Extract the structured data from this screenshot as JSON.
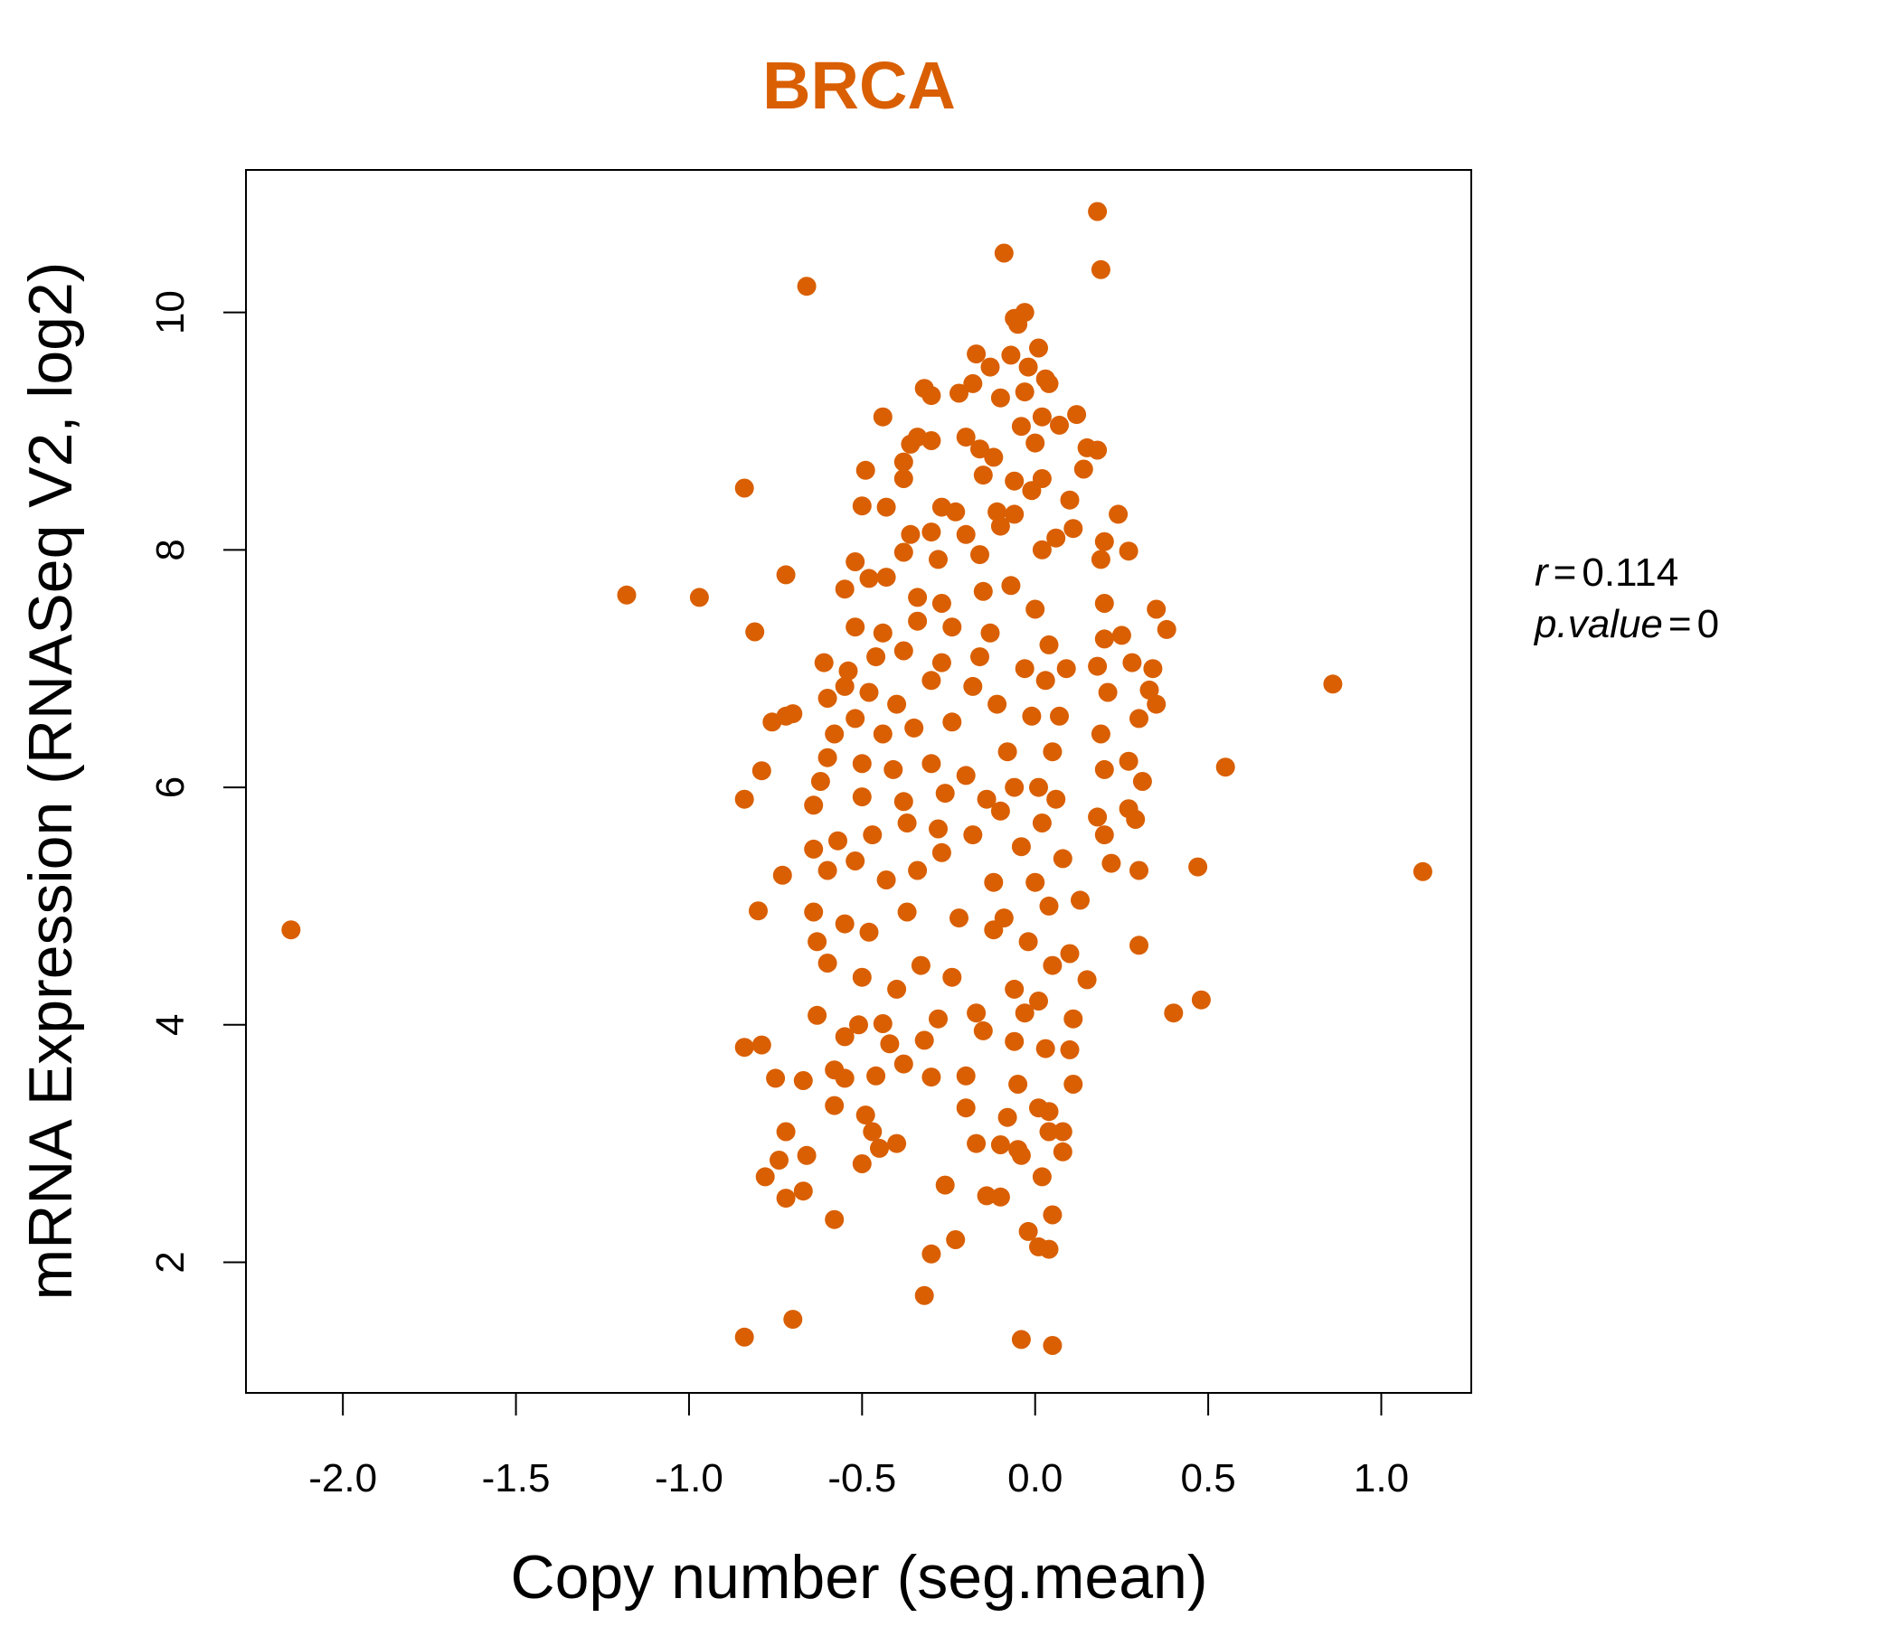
{
  "chart_data": {
    "type": "scatter",
    "title": "BRCA",
    "xlabel": "Copy number (seg.mean)",
    "ylabel": "mRNA Expression (RNASeq V2, log2)",
    "xlim": [
      -2.28,
      1.26
    ],
    "ylim": [
      0.9,
      11.2
    ],
    "x_ticks": [
      -2.0,
      -1.5,
      -1.0,
      -0.5,
      0.0,
      0.5,
      1.0
    ],
    "x_tick_labels": [
      "-2.0",
      "-1.5",
      "-1.0",
      "-0.5",
      "0.0",
      "0.5",
      "1.0"
    ],
    "y_ticks": [
      2,
      4,
      6,
      8,
      10
    ],
    "y_tick_labels": [
      "2",
      "4",
      "6",
      "8",
      "10"
    ],
    "grid": false,
    "point_color": "#d95f02",
    "stats": {
      "r_label": "r",
      "r_value": "0.114",
      "p_label": "p.value",
      "p_value": "0"
    },
    "points": [
      {
        "x": -2.15,
        "y": 4.8
      },
      {
        "x": -1.18,
        "y": 7.62
      },
      {
        "x": -0.97,
        "y": 7.6
      },
      {
        "x": 1.12,
        "y": 5.29
      },
      {
        "x": 0.86,
        "y": 6.87
      },
      {
        "x": 0.55,
        "y": 6.17
      },
      {
        "x": 0.47,
        "y": 5.33
      },
      {
        "x": 0.48,
        "y": 4.21
      },
      {
        "x": 0.4,
        "y": 4.1
      },
      {
        "x": 0.18,
        "y": 10.85
      },
      {
        "x": 0.19,
        "y": 10.36
      },
      {
        "x": -0.09,
        "y": 10.5
      },
      {
        "x": -0.66,
        "y": 10.22
      },
      {
        "x": -0.84,
        "y": 8.52
      },
      {
        "x": -0.72,
        "y": 7.79
      },
      {
        "x": -0.81,
        "y": 7.31
      },
      {
        "x": -0.84,
        "y": 5.9
      },
      {
        "x": -0.8,
        "y": 4.96
      },
      {
        "x": -0.84,
        "y": 3.81
      },
      {
        "x": -0.79,
        "y": 3.83
      },
      {
        "x": -0.7,
        "y": 1.52
      },
      {
        "x": -0.84,
        "y": 1.37
      },
      {
        "x": -0.04,
        "y": 1.35
      },
      {
        "x": 0.05,
        "y": 1.3
      },
      {
        "x": -0.32,
        "y": 1.72
      },
      {
        "x": -0.3,
        "y": 2.07
      },
      {
        "x": -0.23,
        "y": 2.19
      },
      {
        "x": 0.01,
        "y": 2.13
      },
      {
        "x": 0.04,
        "y": 2.11
      },
      {
        "x": -0.02,
        "y": 2.26
      },
      {
        "x": 0.05,
        "y": 2.4
      },
      {
        "x": -0.58,
        "y": 2.36
      },
      {
        "x": -0.72,
        "y": 2.54
      },
      {
        "x": -0.67,
        "y": 2.6
      },
      {
        "x": -0.78,
        "y": 2.72
      },
      {
        "x": -0.26,
        "y": 2.65
      },
      {
        "x": -0.14,
        "y": 2.56
      },
      {
        "x": -0.1,
        "y": 2.55
      },
      {
        "x": 0.02,
        "y": 2.72
      },
      {
        "x": -0.66,
        "y": 2.9
      },
      {
        "x": -0.74,
        "y": 2.86
      },
      {
        "x": -0.5,
        "y": 2.83
      },
      {
        "x": -0.45,
        "y": 2.96
      },
      {
        "x": -0.4,
        "y": 3.0
      },
      {
        "x": -0.17,
        "y": 3.0
      },
      {
        "x": -0.1,
        "y": 2.99
      },
      {
        "x": -0.05,
        "y": 2.95
      },
      {
        "x": 0.08,
        "y": 2.93
      },
      {
        "x": 0.08,
        "y": 3.1
      },
      {
        "x": -0.72,
        "y": 3.1
      },
      {
        "x": -0.49,
        "y": 3.24
      },
      {
        "x": -0.47,
        "y": 3.1
      },
      {
        "x": -0.2,
        "y": 3.3
      },
      {
        "x": -0.08,
        "y": 3.22
      },
      {
        "x": 0.04,
        "y": 3.27
      },
      {
        "x": -0.58,
        "y": 3.32
      },
      {
        "x": -0.75,
        "y": 3.55
      },
      {
        "x": -0.67,
        "y": 3.53
      },
      {
        "x": -0.55,
        "y": 3.55
      },
      {
        "x": -0.46,
        "y": 3.57
      },
      {
        "x": -0.3,
        "y": 3.56
      },
      {
        "x": -0.2,
        "y": 3.57
      },
      {
        "x": 0.11,
        "y": 3.5
      },
      {
        "x": -0.58,
        "y": 3.62
      },
      {
        "x": -0.38,
        "y": 3.67
      },
      {
        "x": -0.32,
        "y": 3.87
      },
      {
        "x": -0.55,
        "y": 3.9
      },
      {
        "x": -0.42,
        "y": 3.84
      },
      {
        "x": -0.15,
        "y": 3.95
      },
      {
        "x": -0.06,
        "y": 3.86
      },
      {
        "x": 0.1,
        "y": 3.79
      },
      {
        "x": -0.63,
        "y": 4.08
      },
      {
        "x": -0.51,
        "y": 4.0
      },
      {
        "x": -0.44,
        "y": 4.01
      },
      {
        "x": -0.28,
        "y": 4.05
      },
      {
        "x": -0.17,
        "y": 4.1
      },
      {
        "x": 0.11,
        "y": 4.05
      },
      {
        "x": -0.6,
        "y": 4.52
      },
      {
        "x": -0.5,
        "y": 4.4
      },
      {
        "x": -0.4,
        "y": 4.3
      },
      {
        "x": -0.33,
        "y": 4.5
      },
      {
        "x": -0.24,
        "y": 4.4
      },
      {
        "x": -0.06,
        "y": 4.3
      },
      {
        "x": 0.15,
        "y": 4.38
      },
      {
        "x": -0.63,
        "y": 4.7
      },
      {
        "x": -0.55,
        "y": 4.85
      },
      {
        "x": -0.48,
        "y": 4.78
      },
      {
        "x": -0.37,
        "y": 4.95
      },
      {
        "x": -0.22,
        "y": 4.9
      },
      {
        "x": -0.12,
        "y": 4.8
      },
      {
        "x": 0.1,
        "y": 4.6
      },
      {
        "x": 0.3,
        "y": 4.67
      },
      {
        "x": -0.64,
        "y": 4.95
      },
      {
        "x": -0.73,
        "y": 5.26
      },
      {
        "x": -0.6,
        "y": 5.3
      },
      {
        "x": -0.52,
        "y": 5.38
      },
      {
        "x": -0.43,
        "y": 5.22
      },
      {
        "x": -0.34,
        "y": 5.3
      },
      {
        "x": -0.27,
        "y": 5.45
      },
      {
        "x": -0.12,
        "y": 5.2
      },
      {
        "x": 0.13,
        "y": 5.05
      },
      {
        "x": 0.22,
        "y": 5.36
      },
      {
        "x": 0.3,
        "y": 5.3
      },
      {
        "x": -0.64,
        "y": 5.48
      },
      {
        "x": -0.57,
        "y": 5.55
      },
      {
        "x": -0.47,
        "y": 5.6
      },
      {
        "x": -0.37,
        "y": 5.7
      },
      {
        "x": -0.28,
        "y": 5.65
      },
      {
        "x": -0.18,
        "y": 5.6
      },
      {
        "x": 0.2,
        "y": 5.6
      },
      {
        "x": -0.64,
        "y": 5.85
      },
      {
        "x": -0.5,
        "y": 5.92
      },
      {
        "x": -0.38,
        "y": 5.88
      },
      {
        "x": -0.26,
        "y": 5.95
      },
      {
        "x": -0.14,
        "y": 5.9
      },
      {
        "x": 0.18,
        "y": 5.75
      },
      {
        "x": 0.27,
        "y": 5.82
      },
      {
        "x": 0.29,
        "y": 5.73
      },
      {
        "x": -0.79,
        "y": 6.14
      },
      {
        "x": -0.62,
        "y": 6.05
      },
      {
        "x": -0.6,
        "y": 6.25
      },
      {
        "x": -0.5,
        "y": 6.2
      },
      {
        "x": -0.41,
        "y": 6.15
      },
      {
        "x": -0.3,
        "y": 6.2
      },
      {
        "x": -0.2,
        "y": 6.1
      },
      {
        "x": 0.2,
        "y": 6.15
      },
      {
        "x": 0.27,
        "y": 6.22
      },
      {
        "x": 0.31,
        "y": 6.05
      },
      {
        "x": -0.76,
        "y": 6.55
      },
      {
        "x": -0.72,
        "y": 6.6
      },
      {
        "x": -0.7,
        "y": 6.62
      },
      {
        "x": -0.58,
        "y": 6.45
      },
      {
        "x": -0.52,
        "y": 6.58
      },
      {
        "x": -0.44,
        "y": 6.45
      },
      {
        "x": -0.35,
        "y": 6.5
      },
      {
        "x": -0.24,
        "y": 6.55
      },
      {
        "x": 0.19,
        "y": 6.45
      },
      {
        "x": 0.3,
        "y": 6.58
      },
      {
        "x": 0.35,
        "y": 6.7
      },
      {
        "x": -0.6,
        "y": 6.75
      },
      {
        "x": -0.55,
        "y": 6.85
      },
      {
        "x": -0.48,
        "y": 6.8
      },
      {
        "x": -0.4,
        "y": 6.7
      },
      {
        "x": -0.3,
        "y": 6.9
      },
      {
        "x": -0.18,
        "y": 6.85
      },
      {
        "x": 0.21,
        "y": 6.8
      },
      {
        "x": 0.33,
        "y": 6.82
      },
      {
        "x": -0.61,
        "y": 7.05
      },
      {
        "x": -0.54,
        "y": 6.98
      },
      {
        "x": -0.46,
        "y": 7.1
      },
      {
        "x": -0.38,
        "y": 7.15
      },
      {
        "x": -0.27,
        "y": 7.05
      },
      {
        "x": -0.16,
        "y": 7.1
      },
      {
        "x": 0.18,
        "y": 7.02
      },
      {
        "x": 0.28,
        "y": 7.05
      },
      {
        "x": 0.34,
        "y": 7.0
      },
      {
        "x": -0.52,
        "y": 7.35
      },
      {
        "x": -0.44,
        "y": 7.3
      },
      {
        "x": -0.34,
        "y": 7.4
      },
      {
        "x": -0.24,
        "y": 7.35
      },
      {
        "x": -0.13,
        "y": 7.3
      },
      {
        "x": 0.2,
        "y": 7.25
      },
      {
        "x": 0.25,
        "y": 7.28
      },
      {
        "x": 0.38,
        "y": 7.33
      },
      {
        "x": -0.55,
        "y": 7.67
      },
      {
        "x": -0.48,
        "y": 7.76
      },
      {
        "x": -0.43,
        "y": 7.77
      },
      {
        "x": -0.34,
        "y": 7.6
      },
      {
        "x": -0.27,
        "y": 7.55
      },
      {
        "x": -0.15,
        "y": 7.65
      },
      {
        "x": 0.2,
        "y": 7.55
      },
      {
        "x": 0.35,
        "y": 7.5
      },
      {
        "x": -0.52,
        "y": 7.9
      },
      {
        "x": -0.38,
        "y": 7.98
      },
      {
        "x": -0.28,
        "y": 7.92
      },
      {
        "x": -0.16,
        "y": 7.96
      },
      {
        "x": 0.19,
        "y": 7.92
      },
      {
        "x": 0.27,
        "y": 7.99
      },
      {
        "x": -0.36,
        "y": 8.13
      },
      {
        "x": -0.3,
        "y": 8.15
      },
      {
        "x": -0.2,
        "y": 8.13
      },
      {
        "x": -0.1,
        "y": 8.2
      },
      {
        "x": 0.11,
        "y": 8.18
      },
      {
        "x": 0.2,
        "y": 8.07
      },
      {
        "x": -0.5,
        "y": 8.37
      },
      {
        "x": -0.43,
        "y": 8.36
      },
      {
        "x": -0.27,
        "y": 8.36
      },
      {
        "x": -0.23,
        "y": 8.32
      },
      {
        "x": -0.11,
        "y": 8.32
      },
      {
        "x": 0.1,
        "y": 8.42
      },
      {
        "x": 0.24,
        "y": 8.3
      },
      {
        "x": -0.49,
        "y": 8.67
      },
      {
        "x": -0.38,
        "y": 8.6
      },
      {
        "x": -0.38,
        "y": 8.74
      },
      {
        "x": -0.15,
        "y": 8.63
      },
      {
        "x": -0.06,
        "y": 8.58
      },
      {
        "x": 0.14,
        "y": 8.68
      },
      {
        "x": -0.36,
        "y": 8.89
      },
      {
        "x": -0.34,
        "y": 8.95
      },
      {
        "x": -0.3,
        "y": 8.92
      },
      {
        "x": -0.2,
        "y": 8.95
      },
      {
        "x": -0.16,
        "y": 8.85
      },
      {
        "x": -0.12,
        "y": 8.78
      },
      {
        "x": 0.15,
        "y": 8.86
      },
      {
        "x": 0.18,
        "y": 8.84
      },
      {
        "x": -0.44,
        "y": 9.12
      },
      {
        "x": -0.04,
        "y": 9.04
      },
      {
        "x": 0.02,
        "y": 9.12
      },
      {
        "x": 0.07,
        "y": 9.05
      },
      {
        "x": 0.12,
        "y": 9.14
      },
      {
        "x": -0.32,
        "y": 9.36
      },
      {
        "x": -0.3,
        "y": 9.3
      },
      {
        "x": -0.22,
        "y": 9.32
      },
      {
        "x": -0.18,
        "y": 9.4
      },
      {
        "x": -0.1,
        "y": 9.28
      },
      {
        "x": -0.03,
        "y": 9.33
      },
      {
        "x": 0.04,
        "y": 9.4
      },
      {
        "x": -0.17,
        "y": 9.65
      },
      {
        "x": -0.13,
        "y": 9.54
      },
      {
        "x": -0.07,
        "y": 9.64
      },
      {
        "x": -0.02,
        "y": 9.54
      },
      {
        "x": 0.01,
        "y": 9.7
      },
      {
        "x": 0.03,
        "y": 9.44
      },
      {
        "x": -0.06,
        "y": 9.95
      },
      {
        "x": -0.03,
        "y": 10.0
      },
      {
        "x": -0.05,
        "y": 9.9
      },
      {
        "x": -0.08,
        "y": 6.3
      },
      {
        "x": -0.06,
        "y": 6.0
      },
      {
        "x": -0.04,
        "y": 5.5
      },
      {
        "x": -0.03,
        "y": 7.0
      },
      {
        "x": -0.02,
        "y": 4.7
      },
      {
        "x": -0.01,
        "y": 6.6
      },
      {
        "x": 0.0,
        "y": 5.2
      },
      {
        "x": 0.0,
        "y": 7.5
      },
      {
        "x": 0.01,
        "y": 4.2
      },
      {
        "x": 0.01,
        "y": 6.0
      },
      {
        "x": 0.02,
        "y": 5.7
      },
      {
        "x": 0.02,
        "y": 8.0
      },
      {
        "x": 0.03,
        "y": 3.8
      },
      {
        "x": 0.03,
        "y": 6.9
      },
      {
        "x": 0.04,
        "y": 5.0
      },
      {
        "x": 0.04,
        "y": 7.2
      },
      {
        "x": 0.05,
        "y": 4.5
      },
      {
        "x": 0.05,
        "y": 6.3
      },
      {
        "x": 0.06,
        "y": 5.9
      },
      {
        "x": 0.07,
        "y": 6.6
      },
      {
        "x": 0.08,
        "y": 5.4
      },
      {
        "x": 0.09,
        "y": 7.0
      },
      {
        "x": -0.09,
        "y": 4.9
      },
      {
        "x": -0.1,
        "y": 5.8
      },
      {
        "x": -0.11,
        "y": 6.7
      },
      {
        "x": -0.07,
        "y": 7.7
      },
      {
        "x": -0.05,
        "y": 3.5
      },
      {
        "x": -0.03,
        "y": 4.1
      },
      {
        "x": -0.01,
        "y": 8.5
      },
      {
        "x": 0.01,
        "y": 3.3
      },
      {
        "x": 0.02,
        "y": 8.6
      },
      {
        "x": 0.04,
        "y": 3.1
      },
      {
        "x": -0.06,
        "y": 8.3
      },
      {
        "x": 0.06,
        "y": 8.1
      },
      {
        "x": -0.04,
        "y": 2.9
      },
      {
        "x": 0.0,
        "y": 8.9
      }
    ]
  }
}
